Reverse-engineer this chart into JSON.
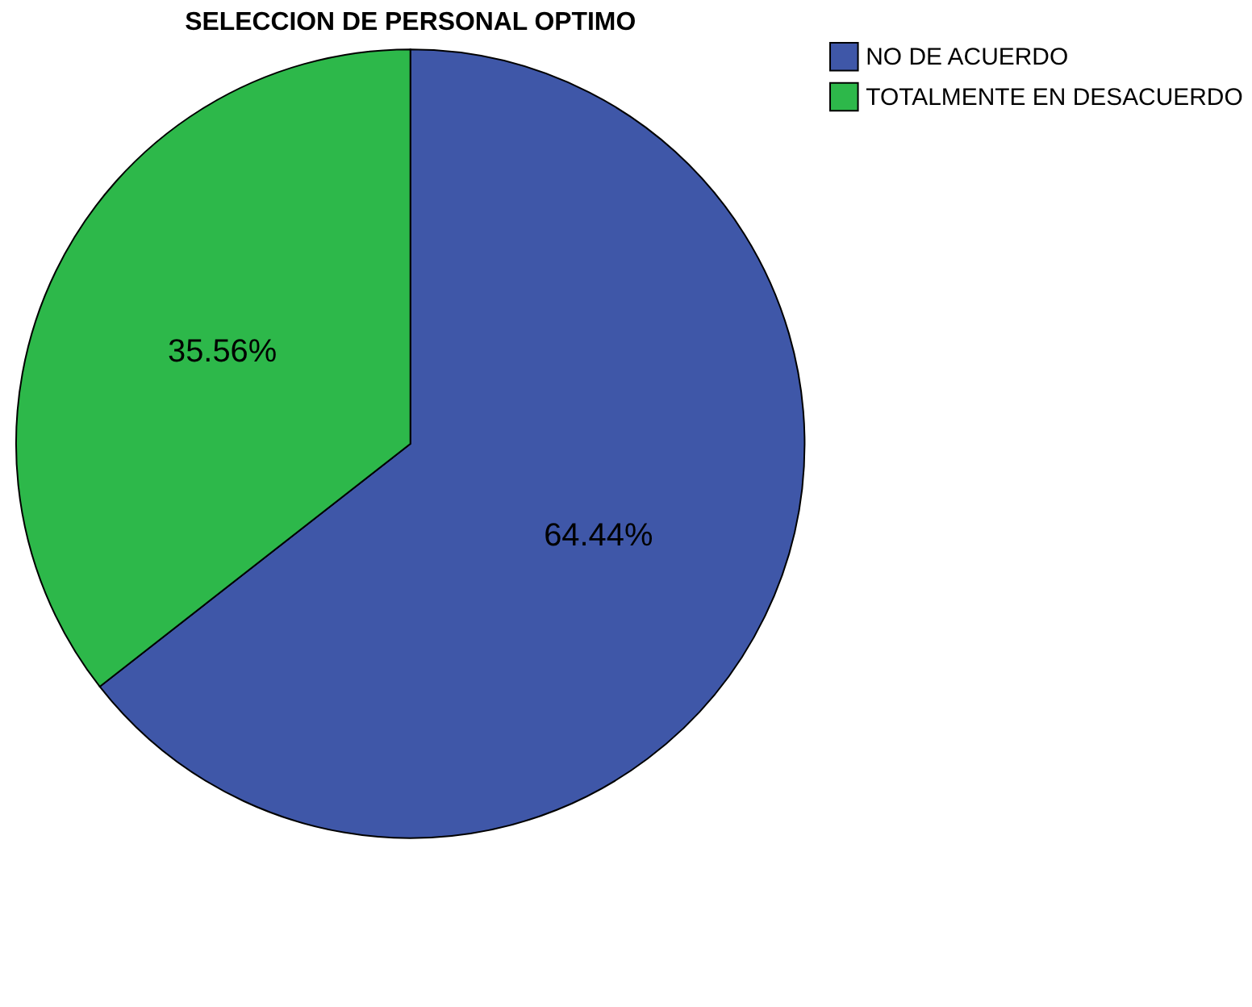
{
  "chart_data": {
    "type": "pie",
    "title": "SELECCION DE PERSONAL OPTIMO",
    "categories": [
      "NO DE ACUERDO",
      "TOTALMENTE EN DESACUERDO"
    ],
    "values": [
      64.44,
      35.56
    ],
    "colors": [
      "#3f57a8",
      "#2db84a"
    ],
    "value_labels": [
      "64.44%",
      "35.56%"
    ],
    "legend": "top right"
  }
}
